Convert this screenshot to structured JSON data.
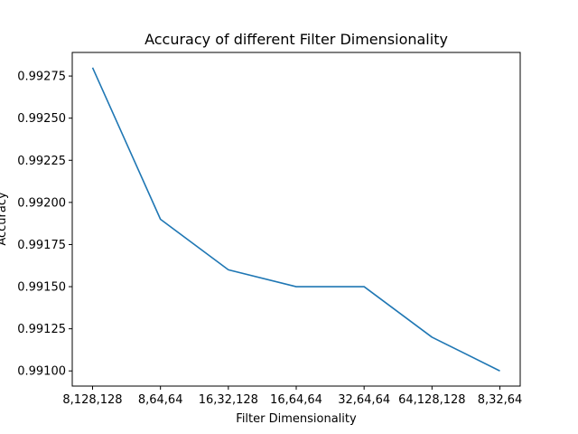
{
  "chart_data": {
    "type": "line",
    "title": "Accuracy of different Filter Dimensionality",
    "xlabel": "Filter Dimensionality",
    "ylabel": "Accuracy",
    "categories": [
      "8,128,128",
      "8,64,64",
      "16,32,128",
      "16,64,64",
      "32,64,64",
      "64,128,128",
      "8,32,64"
    ],
    "series": [
      {
        "values": [
          0.9928,
          0.9919,
          0.9916,
          0.9915,
          0.9915,
          0.9912,
          0.991
        ],
        "color": "#1f77b4"
      }
    ],
    "yticks": [
      "0.99100",
      "0.99125",
      "0.99150",
      "0.99175",
      "0.99200",
      "0.99225",
      "0.99250",
      "0.99275"
    ],
    "ytick_values": [
      0.991,
      0.99125,
      0.9915,
      0.99175,
      0.992,
      0.99225,
      0.9925,
      0.99275
    ],
    "ylim": [
      0.99091,
      0.99289
    ],
    "grid": false,
    "legend": "none"
  }
}
